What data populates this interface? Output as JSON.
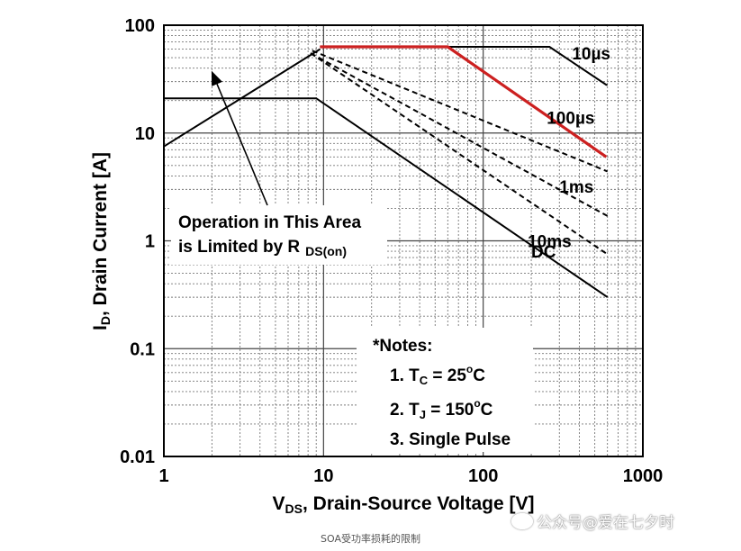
{
  "chart_data": {
    "type": "line",
    "x_scale": "log",
    "y_scale": "log",
    "xlim": [
      1,
      1000
    ],
    "ylim": [
      0.01,
      100
    ],
    "x_ticks": [
      "1",
      "10",
      "100",
      "1000"
    ],
    "y_ticks": [
      "100",
      "10",
      "1",
      "0.1",
      "0.01"
    ],
    "xlabel": {
      "main": "V",
      "sub": "DS",
      "rest": ", Drain-Source Voltage [V]"
    },
    "ylabel": {
      "main": "I",
      "sub": "D",
      "rest": ", Drain Current [A]"
    },
    "grid": true,
    "rds_boundary": {
      "x": [
        1,
        9.5
      ],
      "y": [
        7.5,
        60
      ]
    },
    "series": [
      {
        "name": "10µs",
        "x": [
          9.5,
          260,
          590,
          600
        ],
        "y": [
          63,
          63,
          28,
          28
        ],
        "style": "solid",
        "color": "#000000"
      },
      {
        "name": "100µs",
        "x": [
          9.5,
          60,
          590
        ],
        "y": [
          63,
          63,
          6.0
        ],
        "style": "solid",
        "color": "#cc2020"
      },
      {
        "name": "1ms",
        "x": [
          8.5,
          600
        ],
        "y": [
          58,
          4.4
        ],
        "style": "dashed",
        "color": "#000000"
      },
      {
        "name": "10ms",
        "x": [
          8.3,
          600
        ],
        "y": [
          55,
          1.7
        ],
        "style": "dashed",
        "color": "#000000"
      },
      {
        "name": "",
        "x": [
          8.3,
          600
        ],
        "y": [
          55,
          0.75
        ],
        "style": "dashed",
        "color": "#000000"
      },
      {
        "name": "DC",
        "x": [
          1,
          9,
          600
        ],
        "y": [
          21,
          21,
          0.3
        ],
        "style": "solid",
        "color": "#000000"
      }
    ],
    "curve_labels": [
      {
        "text": "10",
        "unit": "µs",
        "x": 360,
        "y": 55
      },
      {
        "text": "100",
        "unit": "µs",
        "x": 250,
        "y": 14
      },
      {
        "text": "1ms",
        "x": 300,
        "y": 3.2
      },
      {
        "text": "10ms",
        "x": 190,
        "y": 1.0
      },
      {
        "text": "DC",
        "x": 200,
        "y": 0.8
      }
    ],
    "annotation": {
      "line1": "Operation in This Area",
      "line2_main": "is Limited by R",
      "line2_sub": "DS(on)"
    },
    "notes": {
      "title": "*Notes:",
      "n1": {
        "prefix": "1. T",
        "sub": "C",
        "value": " = 25",
        "sup": "o",
        "unit": "C"
      },
      "n2": {
        "prefix": "2. T",
        "sub": "J",
        "value": " = 150",
        "sup": "o",
        "unit": "C"
      },
      "n3": "3. Single Pulse"
    }
  },
  "watermark": "公众号@爱在七夕时",
  "caption": "SOA受功率损耗的限制"
}
